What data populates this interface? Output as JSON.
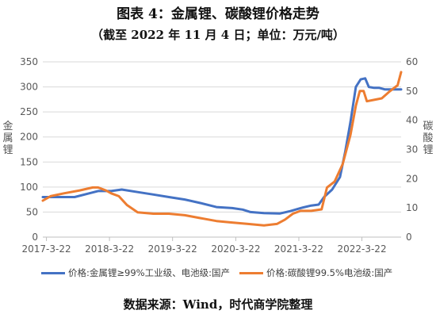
{
  "title": "图表 4：金属锂、碳酸锂价格走势",
  "subtitle": "（截至 2022 年 11 月 4 日；单位：万元/吨）",
  "source": "数据来源：Wind，时代商学院整理",
  "colors": {
    "series1": "#4472c4",
    "series2": "#ed7d31",
    "grid": "#d9d9d9",
    "tick": "#595959"
  },
  "chart_data": {
    "type": "line",
    "ylabel_left": "金属锂",
    "ylabel_right": "碳酸锂",
    "left_axis": {
      "min": 0,
      "max": 350,
      "ticks": [
        "0",
        "50",
        "100",
        "150",
        "200",
        "250",
        "300",
        "350"
      ]
    },
    "right_axis": {
      "min": 0,
      "max": 60,
      "ticks": [
        "0",
        "10",
        "20",
        "30",
        "40",
        "50",
        "60"
      ]
    },
    "x_axis": {
      "range": [
        "2017-03-01",
        "2022-11-04"
      ],
      "ticks": [
        "2017-3-22",
        "2018-3-22",
        "2019-3-22",
        "2020-3-22",
        "2021-3-22",
        "2022-3-22"
      ]
    },
    "grid": true,
    "legend_position": "bottom",
    "series": [
      {
        "name": "价格:金属锂≥99%工业级、电池级:国产",
        "axis": "left",
        "points": [
          [
            "2017-03-01",
            80
          ],
          [
            "2017-06-01",
            80
          ],
          [
            "2017-09-01",
            80
          ],
          [
            "2017-12-01",
            88
          ],
          [
            "2018-01-15",
            92
          ],
          [
            "2018-04-01",
            92
          ],
          [
            "2018-06-01",
            95
          ],
          [
            "2018-09-01",
            90
          ],
          [
            "2018-12-01",
            85
          ],
          [
            "2019-03-01",
            80
          ],
          [
            "2019-06-01",
            75
          ],
          [
            "2019-09-01",
            68
          ],
          [
            "2019-12-01",
            60
          ],
          [
            "2020-03-01",
            58
          ],
          [
            "2020-05-01",
            55
          ],
          [
            "2020-06-15",
            50
          ],
          [
            "2020-09-01",
            48
          ],
          [
            "2020-12-01",
            47
          ],
          [
            "2021-02-01",
            52
          ],
          [
            "2021-04-01",
            58
          ],
          [
            "2021-06-01",
            63
          ],
          [
            "2021-07-15",
            65
          ],
          [
            "2021-08-15",
            80
          ],
          [
            "2021-10-01",
            95
          ],
          [
            "2021-11-15",
            120
          ],
          [
            "2021-12-15",
            170
          ],
          [
            "2022-01-15",
            230
          ],
          [
            "2022-02-15",
            300
          ],
          [
            "2022-03-15",
            315
          ],
          [
            "2022-04-10",
            317
          ],
          [
            "2022-05-01",
            300
          ],
          [
            "2022-06-01",
            298
          ],
          [
            "2022-07-01",
            298
          ],
          [
            "2022-08-01",
            295
          ],
          [
            "2022-09-01",
            295
          ],
          [
            "2022-11-04",
            295
          ]
        ]
      },
      {
        "name": "价格:碳酸锂99.5%电池级:国产",
        "axis": "right",
        "points": [
          [
            "2017-03-01",
            12.5
          ],
          [
            "2017-04-15",
            14
          ],
          [
            "2017-07-01",
            15
          ],
          [
            "2017-10-01",
            16
          ],
          [
            "2017-12-15",
            17
          ],
          [
            "2018-01-15",
            17
          ],
          [
            "2018-03-01",
            16
          ],
          [
            "2018-04-01",
            15
          ],
          [
            "2018-05-15",
            14
          ],
          [
            "2018-07-01",
            11
          ],
          [
            "2018-09-01",
            8.5
          ],
          [
            "2018-12-01",
            8
          ],
          [
            "2019-03-01",
            8
          ],
          [
            "2019-06-01",
            7.5
          ],
          [
            "2019-09-01",
            6.5
          ],
          [
            "2019-12-01",
            5.5
          ],
          [
            "2020-03-01",
            5
          ],
          [
            "2020-06-01",
            4.5
          ],
          [
            "2020-09-01",
            4
          ],
          [
            "2020-11-15",
            4.5
          ],
          [
            "2021-01-01",
            6
          ],
          [
            "2021-02-15",
            8
          ],
          [
            "2021-04-01",
            9
          ],
          [
            "2021-06-01",
            9
          ],
          [
            "2021-08-01",
            9.5
          ],
          [
            "2021-09-01",
            17
          ],
          [
            "2021-10-15",
            19
          ],
          [
            "2021-12-01",
            25
          ],
          [
            "2022-01-15",
            35
          ],
          [
            "2022-02-15",
            45
          ],
          [
            "2022-03-10",
            50
          ],
          [
            "2022-04-01",
            50
          ],
          [
            "2022-04-20",
            46.5
          ],
          [
            "2022-06-01",
            47
          ],
          [
            "2022-07-15",
            47.5
          ],
          [
            "2022-09-01",
            50
          ],
          [
            "2022-10-15",
            52
          ],
          [
            "2022-11-04",
            56.5
          ]
        ]
      }
    ]
  }
}
